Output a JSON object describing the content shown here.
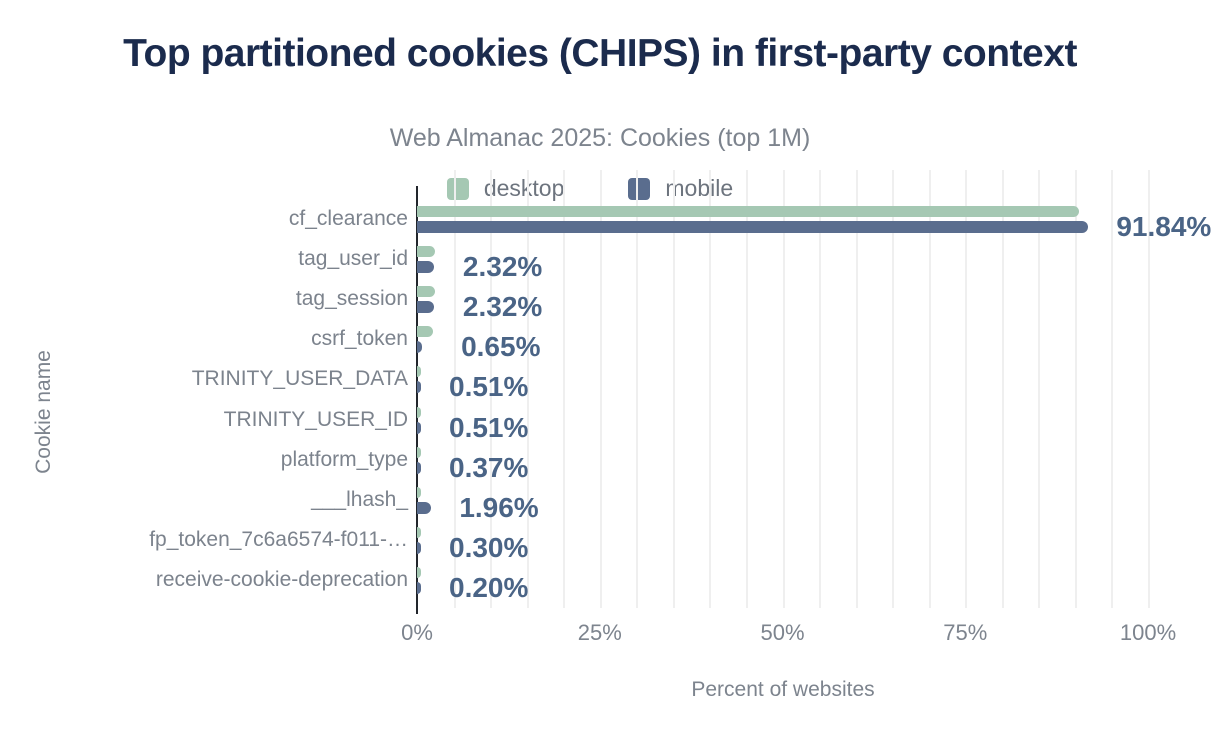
{
  "title": "Top partitioned cookies (CHIPS) in first-party context",
  "subtitle": "Web Almanac 2025: Cookies (top 1M)",
  "legend": [
    {
      "label": "desktop",
      "color": "#a5c8b3"
    },
    {
      "label": "mobile",
      "color": "#5a6d8e"
    }
  ],
  "x_axis": {
    "title": "Percent of websites",
    "ticks": [
      "0%",
      "25%",
      "50%",
      "75%",
      "100%"
    ],
    "tick_values": [
      0,
      25,
      50,
      75,
      100
    ]
  },
  "y_axis": {
    "title": "Cookie name"
  },
  "colors": {
    "title": "#1b2b4d",
    "muted_text": "#7d848e",
    "value_label": "#4a6486",
    "axis_line": "#22262c",
    "gridline": "#efefef",
    "desktop_bar": "#a5c8b3",
    "mobile_bar": "#5a6d8e"
  },
  "chart_data": {
    "type": "bar",
    "orientation": "horizontal",
    "title": "Top partitioned cookies (CHIPS) in first-party context",
    "subtitle": "Web Almanac 2025: Cookies (top 1M)",
    "xlabel": "Percent of websites",
    "ylabel": "Cookie name",
    "xlim": [
      0,
      100
    ],
    "gridline_step": 5,
    "legend_position": "top",
    "categories": [
      "cf_clearance",
      "tag_user_id",
      "tag_session",
      "csrf_token",
      "TRINITY_USER_DATA",
      "TRINITY_USER_ID",
      "platform_type",
      "___lhash_",
      "fp_token_7c6a6574-f011-…",
      "receive-cookie-deprecation"
    ],
    "series": [
      {
        "name": "desktop",
        "color": "#a5c8b3",
        "values": [
          90.6,
          2.45,
          2.45,
          2.2,
          0.5,
          0.5,
          0.4,
          0.5,
          0.3,
          0.2
        ]
      },
      {
        "name": "mobile",
        "color": "#5a6d8e",
        "values": [
          91.84,
          2.32,
          2.32,
          0.65,
          0.51,
          0.51,
          0.37,
          1.96,
          0.3,
          0.2
        ]
      }
    ],
    "value_labels": [
      "91.84%",
      "2.32%",
      "2.32%",
      "0.65%",
      "0.51%",
      "0.51%",
      "0.37%",
      "1.96%",
      "0.30%",
      "0.20%"
    ],
    "value_labels_series": "mobile"
  }
}
